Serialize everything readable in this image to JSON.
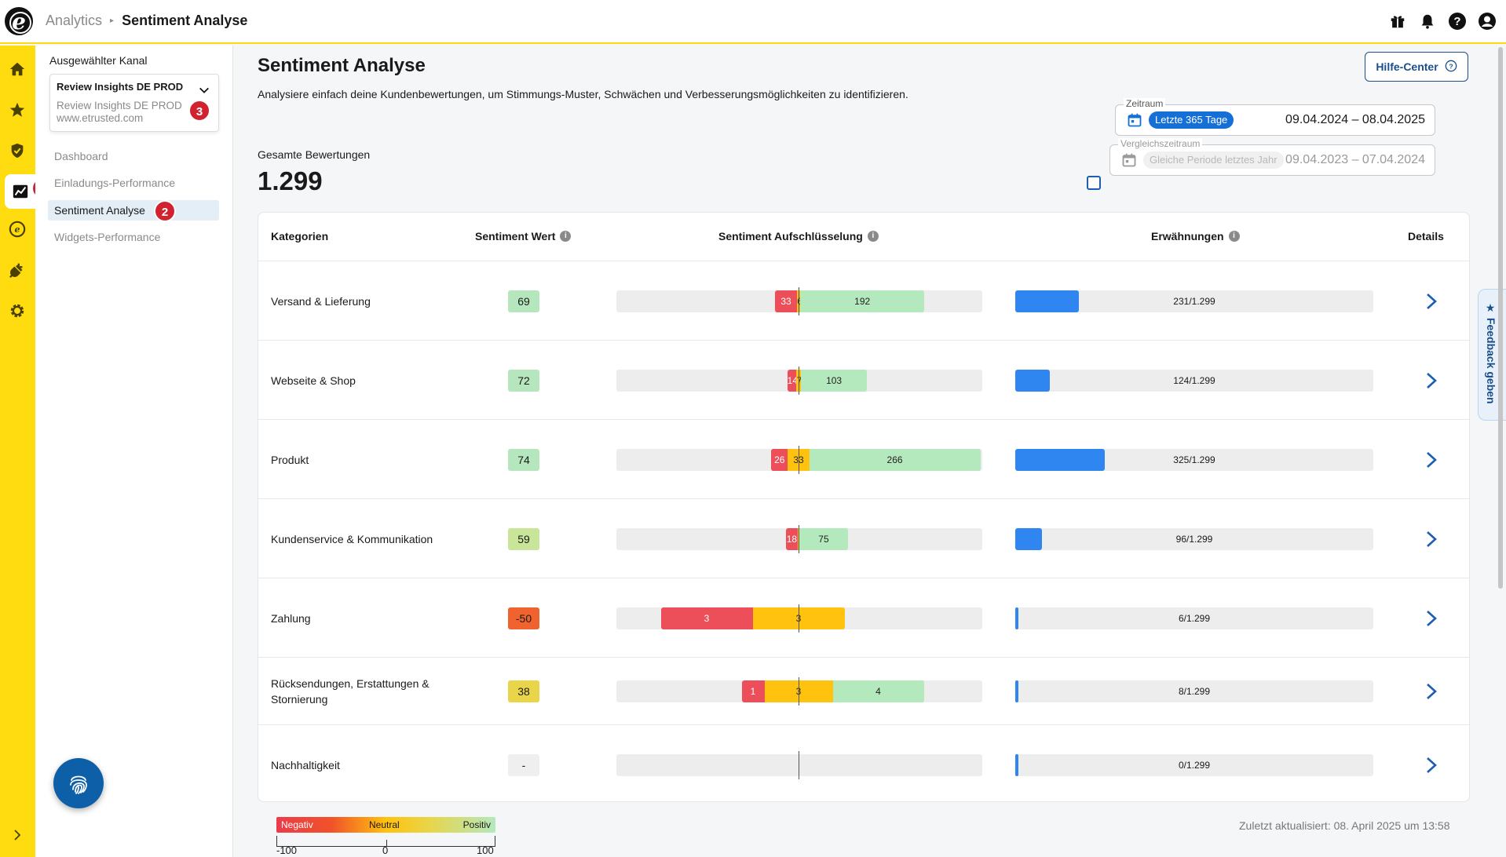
{
  "header": {
    "breadcrumb_root": "Analytics",
    "breadcrumb_current": "Sentiment Analyse"
  },
  "subnav": {
    "channel_label": "Ausgewählter Kanal",
    "channel_name": "Review Insights DE PROD",
    "channel_sub": "Review Insights DE PROD",
    "channel_url": "www.etrusted.com",
    "items": [
      "Dashboard",
      "Einladungs-Performance",
      "Sentiment Analyse",
      "Widgets-Performance"
    ],
    "badges": [
      "1",
      "2",
      "3"
    ]
  },
  "page": {
    "title": "Sentiment Analyse",
    "description": "Analysiere einfach deine Kundenbewertungen, um Stimmungs-Muster, Schwächen und Verbesserungsmöglichkeiten zu identifizieren.",
    "help_label": "Hilfe-Center",
    "total_label": "Gesamte Bewertungen",
    "total_value": "1.299"
  },
  "period": {
    "legend": "Zeitraum",
    "chip": "Letzte 365 Tage",
    "range": "09.04.2024 – 08.04.2025"
  },
  "compare": {
    "legend": "Vergleichszeitraum",
    "chip": "Gleiche Periode letztes Jahr",
    "range": "09.04.2023 – 07.04.2024"
  },
  "table": {
    "headers": {
      "category": "Kategorien",
      "score": "Sentiment Wert",
      "breakdown": "Sentiment Aufschlüsselung",
      "mentions": "Erwähnungen",
      "details": "Details"
    },
    "rows": [
      {
        "category": "Versand & Lieferung",
        "score": "69",
        "score_color": "#b6e6bd",
        "neg": 33,
        "neu": 6,
        "pos": 192,
        "mentions": 231,
        "mentions_text": "231/1.299"
      },
      {
        "category": "Webseite & Shop",
        "score": "72",
        "score_color": "#b6e6bd",
        "neg": 14,
        "neu": 7,
        "pos": 103,
        "mentions": 124,
        "mentions_text": "124/1.299"
      },
      {
        "category": "Produkt",
        "score": "74",
        "score_color": "#b6e6bd",
        "neg": 26,
        "neu": 33,
        "pos": 266,
        "mentions": 325,
        "mentions_text": "325/1.299"
      },
      {
        "category": "Kundenservice & Kommunikation",
        "score": "59",
        "score_color": "#c8e59a",
        "neg": 18,
        "neu": 3,
        "pos": 75,
        "mentions": 96,
        "mentions_text": "96/1.299"
      },
      {
        "category": "Zahlung",
        "score": "-50",
        "score_color": "#f0632f",
        "neg": 3,
        "neu": 3,
        "pos": 0,
        "mentions": 6,
        "mentions_text": "6/1.299"
      },
      {
        "category": "Rücksendungen, Erstattungen & Stornierung",
        "score": "38",
        "score_color": "#e8d54a",
        "neg": 1,
        "neu": 3,
        "pos": 4,
        "mentions": 8,
        "mentions_text": "8/1.299"
      },
      {
        "category": "Nachhaltigkeit",
        "score": "-",
        "score_color": "#efefef",
        "neg": 0,
        "neu": 0,
        "pos": 0,
        "mentions": 0,
        "mentions_text": "0/1.299"
      }
    ],
    "total_mentions": 1299
  },
  "legend": {
    "negative": "Negativ",
    "neutral": "Neutral",
    "positive": "Positiv",
    "min": "-100",
    "mid": "0",
    "max": "100"
  },
  "footer": {
    "updated": "Zuletzt aktualisiert: 08. April 2025 um 13:58"
  },
  "feedback_label": "★ Feedback geben",
  "colors": {
    "brand_yellow": "#ffdc0f",
    "accent_blue": "#1470d6",
    "negative": "#ec4f59",
    "neutral": "#ffc20e",
    "positive": "#b4e8bd",
    "mention_bar": "#2f86f1"
  }
}
